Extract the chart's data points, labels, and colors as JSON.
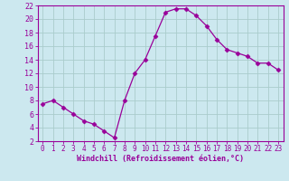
{
  "x": [
    0,
    1,
    2,
    3,
    4,
    5,
    6,
    7,
    8,
    9,
    10,
    11,
    12,
    13,
    14,
    15,
    16,
    17,
    18,
    19,
    20,
    21,
    22,
    23
  ],
  "y": [
    7.5,
    8.0,
    7.0,
    6.0,
    5.0,
    4.5,
    3.5,
    2.5,
    8.0,
    12.0,
    14.0,
    17.5,
    21.0,
    21.5,
    21.5,
    20.5,
    19.0,
    17.0,
    15.5,
    15.0,
    14.5,
    13.5,
    13.5,
    12.5
  ],
  "line_color": "#990099",
  "marker": "D",
  "markersize": 2.5,
  "linewidth": 0.9,
  "bg_color": "#cce8ef",
  "grid_color": "#aacccc",
  "xlabel": "Windchill (Refroidissement éolien,°C)",
  "xlabel_color": "#990099",
  "tick_color": "#990099",
  "axis_color": "#990099",
  "ylim": [
    2,
    22
  ],
  "xlim": [
    -0.5,
    23.5
  ],
  "yticks": [
    2,
    4,
    6,
    8,
    10,
    12,
    14,
    16,
    18,
    20,
    22
  ],
  "xticks": [
    0,
    1,
    2,
    3,
    4,
    5,
    6,
    7,
    8,
    9,
    10,
    11,
    12,
    13,
    14,
    15,
    16,
    17,
    18,
    19,
    20,
    21,
    22,
    23
  ],
  "xlabel_fontsize": 6.0,
  "tick_fontsize": 5.5,
  "ytick_fontsize": 6.0
}
